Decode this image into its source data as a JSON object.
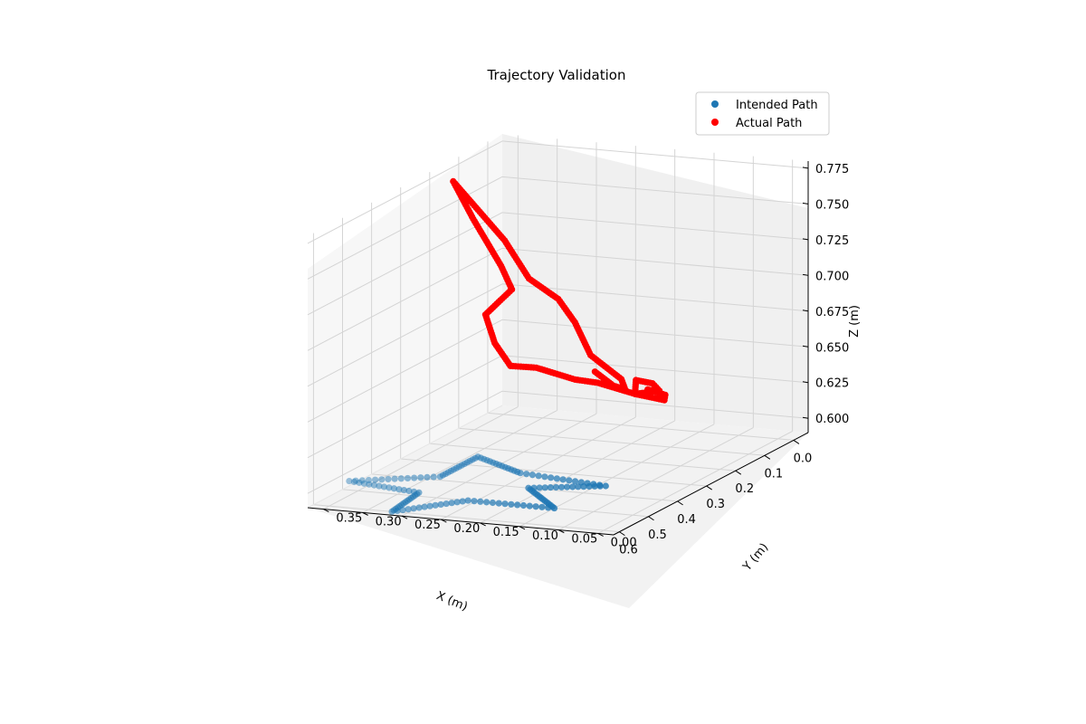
{
  "chart_data": {
    "type": "scatter",
    "projection": "3d",
    "title": "Trajectory Validation",
    "xlabel": "X (m)",
    "ylabel": "Y (m)",
    "zlabel": "Z (m)",
    "xlim": [
      -0.05,
      0.62
    ],
    "ylim": [
      -0.02,
      0.37
    ],
    "zlim": [
      0.59,
      0.78
    ],
    "xticks": [
      0.0,
      0.1,
      0.2,
      0.3,
      0.4,
      0.5,
      0.6
    ],
    "xtick_labels": [
      "0.0",
      "0.1",
      "0.2",
      "0.3",
      "0.4",
      "0.5",
      "0.6"
    ],
    "yticks": [
      0.0,
      0.05,
      0.1,
      0.15,
      0.2,
      0.25,
      0.3,
      0.35
    ],
    "ytick_labels": [
      "0.00",
      "0.05",
      "0.10",
      "0.15",
      "0.20",
      "0.25",
      "0.30",
      "0.35"
    ],
    "zticks": [
      0.6,
      0.625,
      0.65,
      0.675,
      0.7,
      0.725,
      0.75,
      0.775
    ],
    "ztick_labels": [
      "0.600",
      "0.625",
      "0.650",
      "0.675",
      "0.700",
      "0.725",
      "0.750",
      "0.775"
    ],
    "grid": true,
    "legend_position": "top-right",
    "series": [
      {
        "name": "Intended Path",
        "color": "#1f77b4",
        "z": 0.59,
        "star_vertices_xy": [
          [
            0.35,
            0.09
          ],
          [
            0.4,
            0.17
          ],
          [
            0.5,
            0.1
          ],
          [
            0.5,
            0.21
          ],
          [
            0.6,
            0.27
          ],
          [
            0.48,
            0.28
          ],
          [
            0.45,
            0.38
          ],
          [
            0.38,
            0.29
          ],
          [
            0.25,
            0.29
          ],
          [
            0.32,
            0.21
          ]
        ]
      },
      {
        "name": "Actual Path",
        "color": "#ff0000",
        "points": [
          [
            -0.045,
            0.25,
            0.62
          ],
          [
            0.0,
            0.21,
            0.617
          ],
          [
            0.04,
            0.18,
            0.62
          ],
          [
            0.08,
            0.17,
            0.632
          ],
          [
            0.105,
            0.2,
            0.65
          ],
          [
            0.105,
            0.22,
            0.672
          ],
          [
            0.135,
            0.23,
            0.691
          ],
          [
            0.155,
            0.26,
            0.706
          ],
          [
            0.185,
            0.28,
            0.735
          ],
          [
            0.2,
            0.34,
            0.775
          ],
          [
            0.185,
            0.32,
            0.748
          ],
          [
            0.17,
            0.29,
            0.715
          ],
          [
            0.16,
            0.28,
            0.698
          ],
          [
            0.17,
            0.31,
            0.68
          ],
          [
            0.165,
            0.3,
            0.66
          ],
          [
            0.165,
            0.28,
            0.645
          ],
          [
            0.13,
            0.26,
            0.641
          ],
          [
            0.105,
            0.22,
            0.632
          ],
          [
            0.08,
            0.2,
            0.628
          ],
          [
            0.06,
            0.16,
            0.62
          ],
          [
            0.03,
            0.14,
            0.62
          ],
          [
            0.0,
            0.16,
            0.621
          ],
          [
            0.03,
            0.17,
            0.626
          ],
          [
            0.06,
            0.16,
            0.62
          ],
          [
            0.04,
            0.13,
            0.615
          ],
          [
            0.01,
            0.14,
            0.615
          ],
          [
            0.025,
            0.16,
            0.62
          ]
        ]
      }
    ]
  }
}
